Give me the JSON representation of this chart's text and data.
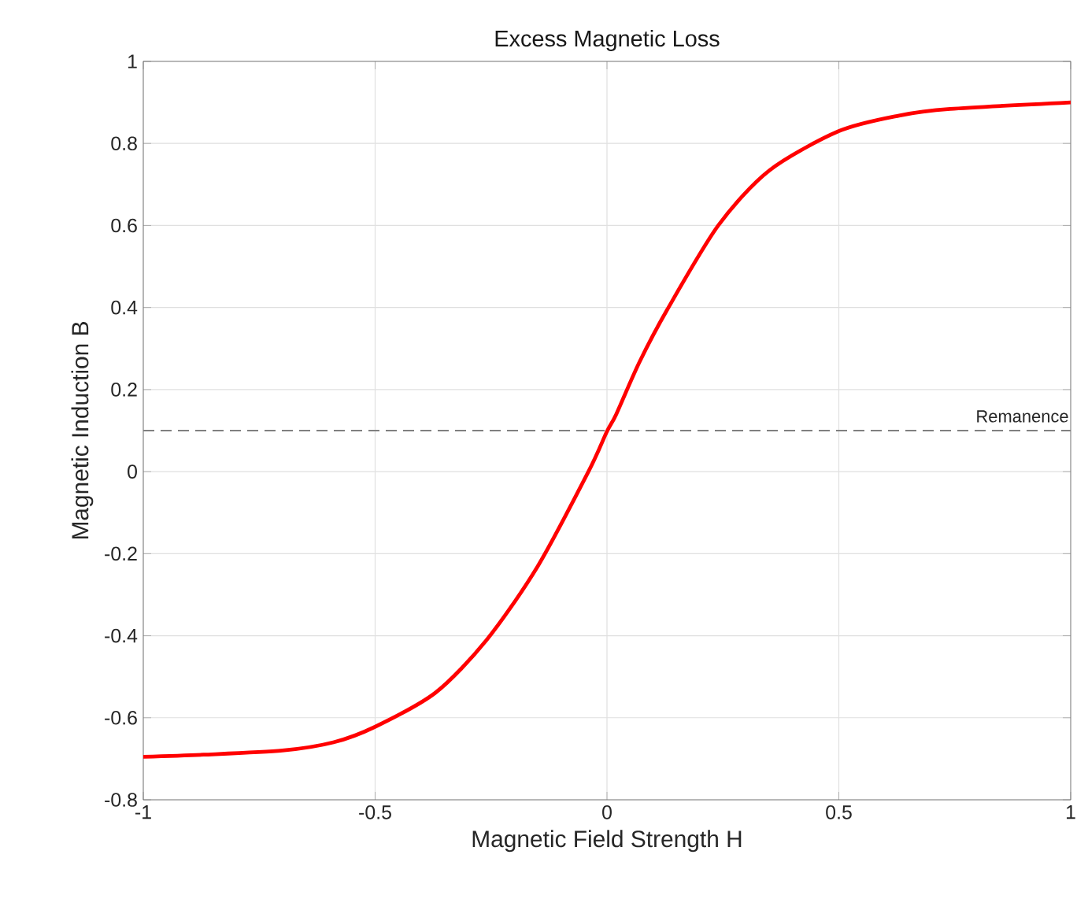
{
  "chart_data": {
    "type": "line",
    "title": "Excess Magnetic Loss",
    "xlabel": "Magnetic Field Strength H",
    "ylabel": "Magnetic Induction B",
    "series": [
      {
        "color": "#ff0000",
        "x": [
          -1,
          -0.87,
          -0.7,
          -0.59,
          -0.5,
          -0.37,
          -0.26,
          -0.15,
          -0.04,
          0,
          0.02,
          0.07,
          0.13,
          0.24,
          0.35,
          0.5,
          0.63,
          0.74,
          1
        ],
        "values": [
          -0.695,
          -0.69,
          -0.68,
          -0.66,
          -0.622,
          -0.539,
          -0.411,
          -0.232,
          0.0,
          0.098,
          0.14,
          0.267,
          0.395,
          0.6,
          0.734,
          0.83,
          0.868,
          0.884,
          0.9
        ]
      }
    ],
    "xlim": [
      -1,
      1
    ],
    "ylim": [
      -0.8,
      1
    ],
    "xticks": [
      -1,
      -0.5,
      0,
      0.5,
      1
    ],
    "yticks": [
      -0.8,
      -0.6,
      -0.4,
      -0.2,
      0,
      0.2,
      0.4,
      0.6,
      0.8,
      1
    ],
    "ref_lines": [
      {
        "axis": "y",
        "value": 0.1,
        "label": "Remanence",
        "color": "#808080",
        "line_style": "dashed"
      }
    ],
    "grid": true,
    "line_style": "solid",
    "marker": "none"
  }
}
